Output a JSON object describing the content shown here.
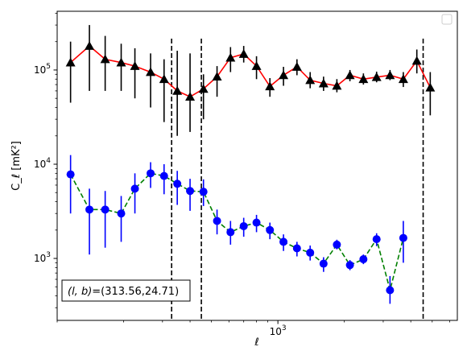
{
  "chart_data": {
    "type": "scatter",
    "title": "",
    "xlabel": "ℓ",
    "ylabel": "C_ℓ  [mK²]",
    "xscale": "log",
    "yscale": "log",
    "xlim": [
      100,
      6500
    ],
    "ylim": [
      220,
      420000
    ],
    "grid": false,
    "legend": "top-right, empty",
    "x_ticks": [
      {
        "value": 1000,
        "base": "10",
        "exp": "3"
      }
    ],
    "y_ticks": [
      {
        "value": 1000,
        "base": "10",
        "exp": "3"
      },
      {
        "value": 10000,
        "base": "10",
        "exp": "4"
      },
      {
        "value": 100000,
        "base": "10",
        "exp": "5"
      }
    ],
    "vlines": [
      330,
      450,
      4550
    ],
    "annotation": {
      "prefix": "(l, b)",
      "value": "=(313.56,24.71)"
    },
    "x": [
      115,
      140,
      165,
      195,
      225,
      265,
      305,
      350,
      400,
      460,
      530,
      610,
      700,
      800,
      920,
      1060,
      1220,
      1400,
      1610,
      1850,
      2120,
      2440,
      2800,
      3220,
      3700,
      4260,
      4900,
      5600
    ],
    "series": [
      {
        "color": "#000000",
        "line_color": "#ff0000",
        "line_style": "solid",
        "marker": "triangle",
        "values": [
          120000,
          180000,
          130000,
          120000,
          110000,
          95000,
          80000,
          60000,
          52000,
          63000,
          85000,
          135000,
          148000,
          110000,
          67000,
          88000,
          108000,
          78000,
          72000,
          68000,
          88000,
          80000,
          84000,
          88000,
          80000,
          125000,
          65000,
          null
        ],
        "err_low": [
          45000,
          60000,
          60000,
          60000,
          50000,
          40000,
          28000,
          20000,
          22000,
          30000,
          52000,
          95000,
          120000,
          80000,
          52000,
          68000,
          88000,
          64000,
          60000,
          58000,
          76000,
          70000,
          74000,
          78000,
          66000,
          92000,
          33000,
          null
        ],
        "err_high": [
          200000,
          300000,
          230000,
          190000,
          170000,
          150000,
          130000,
          160000,
          150000,
          90000,
          110000,
          175000,
          180000,
          140000,
          82000,
          108000,
          130000,
          95000,
          85000,
          80000,
          100000,
          92000,
          96000,
          100000,
          95000,
          165000,
          95000,
          null
        ]
      },
      {
        "color": "#0000ff",
        "line_color": "#008000",
        "line_style": "dashed",
        "marker": "circle",
        "values": [
          7800,
          3300,
          3300,
          3000,
          5500,
          8000,
          7500,
          6200,
          5200,
          5100,
          2500,
          1900,
          2200,
          2400,
          2000,
          1500,
          1280,
          1150,
          880,
          1400,
          850,
          980,
          1600,
          460,
          1650,
          null,
          null,
          null
        ],
        "err_low": [
          3000,
          1100,
          1300,
          1500,
          3000,
          5600,
          4800,
          3700,
          3200,
          3600,
          1800,
          1400,
          1700,
          1900,
          1600,
          1200,
          1050,
          950,
          720,
          1250,
          750,
          870,
          1350,
          330,
          900,
          null,
          null,
          null
        ],
        "err_high": [
          12500,
          5500,
          5200,
          4600,
          8000,
          10500,
          10000,
          8500,
          7000,
          6900,
          3300,
          2500,
          2700,
          2900,
          2400,
          1800,
          1500,
          1370,
          1030,
          1580,
          960,
          1100,
          1850,
          650,
          2500,
          null,
          null,
          null
        ]
      }
    ]
  }
}
